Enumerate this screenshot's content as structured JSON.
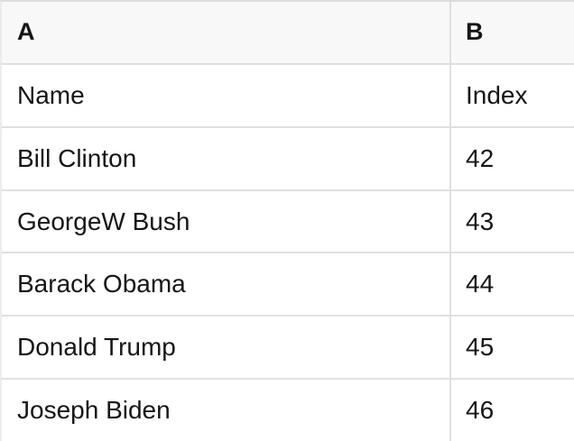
{
  "sheet": {
    "columns": [
      {
        "label": "A"
      },
      {
        "label": "B"
      }
    ],
    "rows": [
      {
        "a": "Name",
        "b": "Index"
      },
      {
        "a": "Bill Clinton",
        "b": "42"
      },
      {
        "a": "GeorgeW Bush",
        "b": "43"
      },
      {
        "a": "Barack Obama",
        "b": "44"
      },
      {
        "a": "Donald Trump",
        "b": "45"
      },
      {
        "a": "Joseph Biden",
        "b": "46"
      }
    ]
  },
  "colors": {
    "header_bg": "#f8f8f8",
    "border": "#e0e0e0",
    "border_top": "#dcdcdc",
    "border_left": "#ececec",
    "text": "#161616",
    "row_bg": "#ffffff"
  }
}
